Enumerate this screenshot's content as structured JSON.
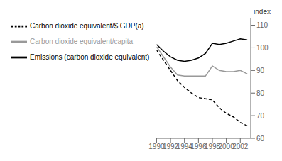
{
  "chart_data": {
    "type": "line",
    "ylabel": "index",
    "x": [
      1990,
      1991,
      1992,
      1993,
      1994,
      1995,
      1996,
      1997,
      1998,
      1999,
      2000,
      2001,
      2002,
      2003
    ],
    "xlim": [
      1990,
      2003.5
    ],
    "xticks": [
      1990,
      1992,
      1994,
      1996,
      1998,
      2000,
      2002
    ],
    "ylim": [
      60,
      113
    ],
    "yticks": [
      60,
      70,
      80,
      90,
      100,
      110
    ],
    "legend": "upper left",
    "grid": false,
    "series": [
      {
        "name": "Emissions (carbon dioxide equivalent)",
        "color": "#000000",
        "line_style": "solid",
        "values": [
          101.5,
          98.5,
          96.0,
          94.5,
          94.0,
          94.5,
          95.5,
          97.5,
          102.0,
          101.5,
          102.0,
          103.0,
          104.0,
          103.5
        ]
      },
      {
        "name": "Carbon dioxide equivalent/capita",
        "color": "#999999",
        "line_style": "solid",
        "values": [
          100.5,
          96.0,
          91.5,
          88.0,
          87.5,
          87.5,
          87.5,
          87.5,
          92.0,
          90.0,
          89.5,
          89.5,
          90.0,
          88.5
        ]
      },
      {
        "name": "Carbon dioxide equivalent/$ GDP(a)",
        "color": "#000000",
        "line_style": "dashed",
        "values": [
          99.0,
          94.5,
          90.0,
          85.5,
          82.5,
          80.0,
          78.0,
          77.5,
          77.0,
          73.5,
          71.0,
          69.5,
          67.0,
          65.5
        ]
      }
    ]
  }
}
